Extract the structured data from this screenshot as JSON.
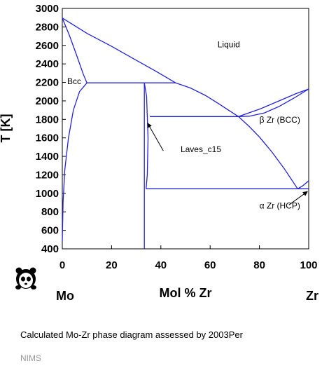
{
  "chart_data": {
    "type": "phase-diagram",
    "title": "",
    "xlabel": "Mol % Zr",
    "ylabel": "T [K]",
    "left_element": "Mo",
    "right_element": "Zr",
    "xlim": [
      0,
      100
    ],
    "ylim": [
      400,
      3000
    ],
    "xticks": [
      0,
      20,
      40,
      60,
      80,
      100
    ],
    "yticks": [
      400,
      600,
      800,
      1000,
      1200,
      1400,
      1600,
      1800,
      2000,
      2200,
      2400,
      2600,
      2800,
      3000
    ],
    "line_color": "#2222dd",
    "curves": [
      {
        "points": [
          [
            0,
            2896
          ],
          [
            10,
            2730
          ],
          [
            20,
            2590
          ],
          [
            30,
            2440
          ],
          [
            38,
            2320
          ],
          [
            46,
            2195
          ]
        ]
      },
      {
        "points": [
          [
            0,
            2896
          ],
          [
            3,
            2700
          ],
          [
            6,
            2480
          ],
          [
            8.5,
            2290
          ],
          [
            10,
            2195
          ]
        ]
      },
      {
        "points": [
          [
            0,
            480
          ],
          [
            0.3,
            900
          ],
          [
            1,
            1250
          ],
          [
            2.5,
            1600
          ],
          [
            4.5,
            1900
          ],
          [
            7,
            2100
          ],
          [
            10,
            2195
          ]
        ]
      },
      {
        "points": [
          [
            10,
            2195
          ],
          [
            46,
            2195
          ]
        ]
      },
      {
        "points": [
          [
            46,
            2195
          ],
          [
            52,
            2140
          ],
          [
            58,
            2060
          ],
          [
            64,
            1960
          ],
          [
            68,
            1890
          ],
          [
            71.5,
            1830
          ]
        ]
      },
      {
        "points": [
          [
            71.5,
            1830
          ],
          [
            80,
            1910
          ],
          [
            88,
            2000
          ],
          [
            95,
            2080
          ],
          [
            100,
            2128
          ]
        ]
      },
      {
        "points": [
          [
            71.5,
            1830
          ],
          [
            76,
            1835
          ],
          [
            82,
            1870
          ],
          [
            88,
            1940
          ],
          [
            94,
            2030
          ],
          [
            100,
            2128
          ]
        ]
      },
      {
        "points": [
          [
            35.5,
            1830
          ],
          [
            71.5,
            1830
          ]
        ]
      },
      {
        "points": [
          [
            71.5,
            1830
          ],
          [
            76,
            1720
          ],
          [
            80,
            1610
          ],
          [
            85,
            1450
          ],
          [
            90,
            1270
          ],
          [
            93.5,
            1130
          ],
          [
            95.5,
            1050
          ]
        ]
      },
      {
        "points": [
          [
            95.5,
            1050
          ],
          [
            97.5,
            1080
          ],
          [
            100,
            1136
          ]
        ]
      },
      {
        "points": [
          [
            33.3,
            2195
          ],
          [
            33.3,
            400
          ]
        ]
      },
      {
        "points": [
          [
            33.3,
            2195
          ],
          [
            34.2,
            2050
          ],
          [
            34.8,
            1600
          ],
          [
            34.5,
            1200
          ],
          [
            34,
            1050
          ]
        ]
      },
      {
        "points": [
          [
            34,
            1050
          ],
          [
            100,
            1050
          ]
        ]
      }
    ],
    "annotations": [
      {
        "text": "Liquid",
        "x": 63,
        "y": 2580
      },
      {
        "text": "Bcc",
        "x": 2,
        "y": 2180
      },
      {
        "text": "Laves_c15",
        "x": 48,
        "y": 1445
      },
      {
        "text": "β Zr (BCC)",
        "x": 80,
        "y": 1765
      },
      {
        "text": "α Zr (HCP)",
        "x": 80,
        "y": 835
      }
    ],
    "arrows": [
      {
        "from": [
          41,
          1460
        ],
        "to": [
          34.6,
          1760
        ]
      },
      {
        "from": [
          92,
          875
        ],
        "to": [
          99.5,
          1020
        ]
      }
    ]
  },
  "caption": "Calculated Mo-Zr phase diagram assessed by 2003Per",
  "credit": "NIMS",
  "logo": {
    "name": "panda-logo"
  }
}
